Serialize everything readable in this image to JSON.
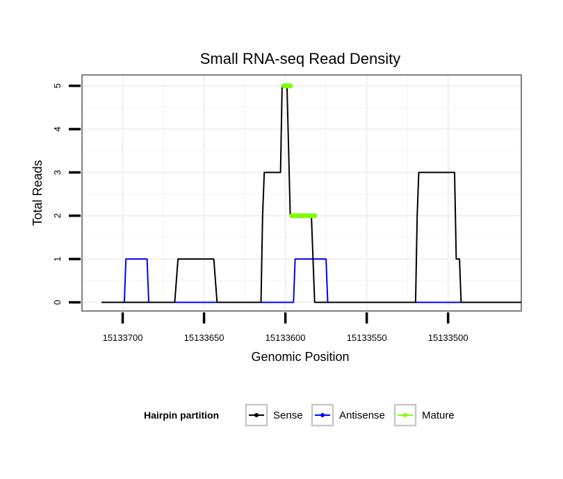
{
  "chart_data": {
    "type": "line",
    "title": "Small RNA-seq Read Density",
    "xlabel": "Genomic Position",
    "ylabel": "Total Reads",
    "x_reversed": true,
    "xlim": [
      15133725,
      15133455
    ],
    "ylim": [
      -0.2,
      5.25
    ],
    "x_ticks": [
      15133700,
      15133650,
      15133600,
      15133550,
      15133500
    ],
    "x_tick_labels": [
      "15133700",
      "15133650",
      "15133600",
      "15133550",
      "15133500"
    ],
    "y_ticks": [
      0,
      1,
      2,
      3,
      4,
      5
    ],
    "y_tick_labels": [
      "0",
      "1",
      "2",
      "3",
      "4",
      "5"
    ],
    "grid": true,
    "legend": {
      "title": "Hairpin partition",
      "position": "bottom",
      "entries": [
        {
          "label": "Sense",
          "color": "#000000"
        },
        {
          "label": "Antisense",
          "color": "#0000ff"
        },
        {
          "label": "Mature",
          "color": "#7cfc00"
        }
      ]
    },
    "series": [
      {
        "name": "Sense",
        "color": "#000000",
        "x": [
          15133713,
          15133668,
          15133666,
          15133644,
          15133642,
          15133615,
          15133614,
          15133613,
          15133603,
          15133602,
          15133599,
          15133597,
          15133596,
          15133584,
          15133582,
          15133520,
          15133519,
          15133518,
          15133496,
          15133495,
          15133493,
          15133492,
          15133455
        ],
        "y": [
          0,
          0,
          1,
          1,
          0,
          0,
          2,
          3,
          3,
          5,
          5,
          2,
          2,
          2,
          0,
          0,
          2,
          3,
          3,
          1,
          1,
          0,
          0
        ]
      },
      {
        "name": "Antisense",
        "color": "#0000ff",
        "x": [
          15133713,
          15133699,
          15133698,
          15133685,
          15133684,
          15133595,
          15133594,
          15133575,
          15133574,
          15133455
        ],
        "y": [
          0,
          0,
          1,
          1,
          0,
          0,
          1,
          1,
          0,
          0
        ]
      },
      {
        "name": "Mature",
        "color": "#7cfc00",
        "segments": [
          {
            "x": [
              15133601,
              15133597
            ],
            "y": [
              5,
              5
            ]
          },
          {
            "x": [
              15133596,
              15133582
            ],
            "y": [
              2,
              2
            ]
          }
        ]
      }
    ]
  }
}
